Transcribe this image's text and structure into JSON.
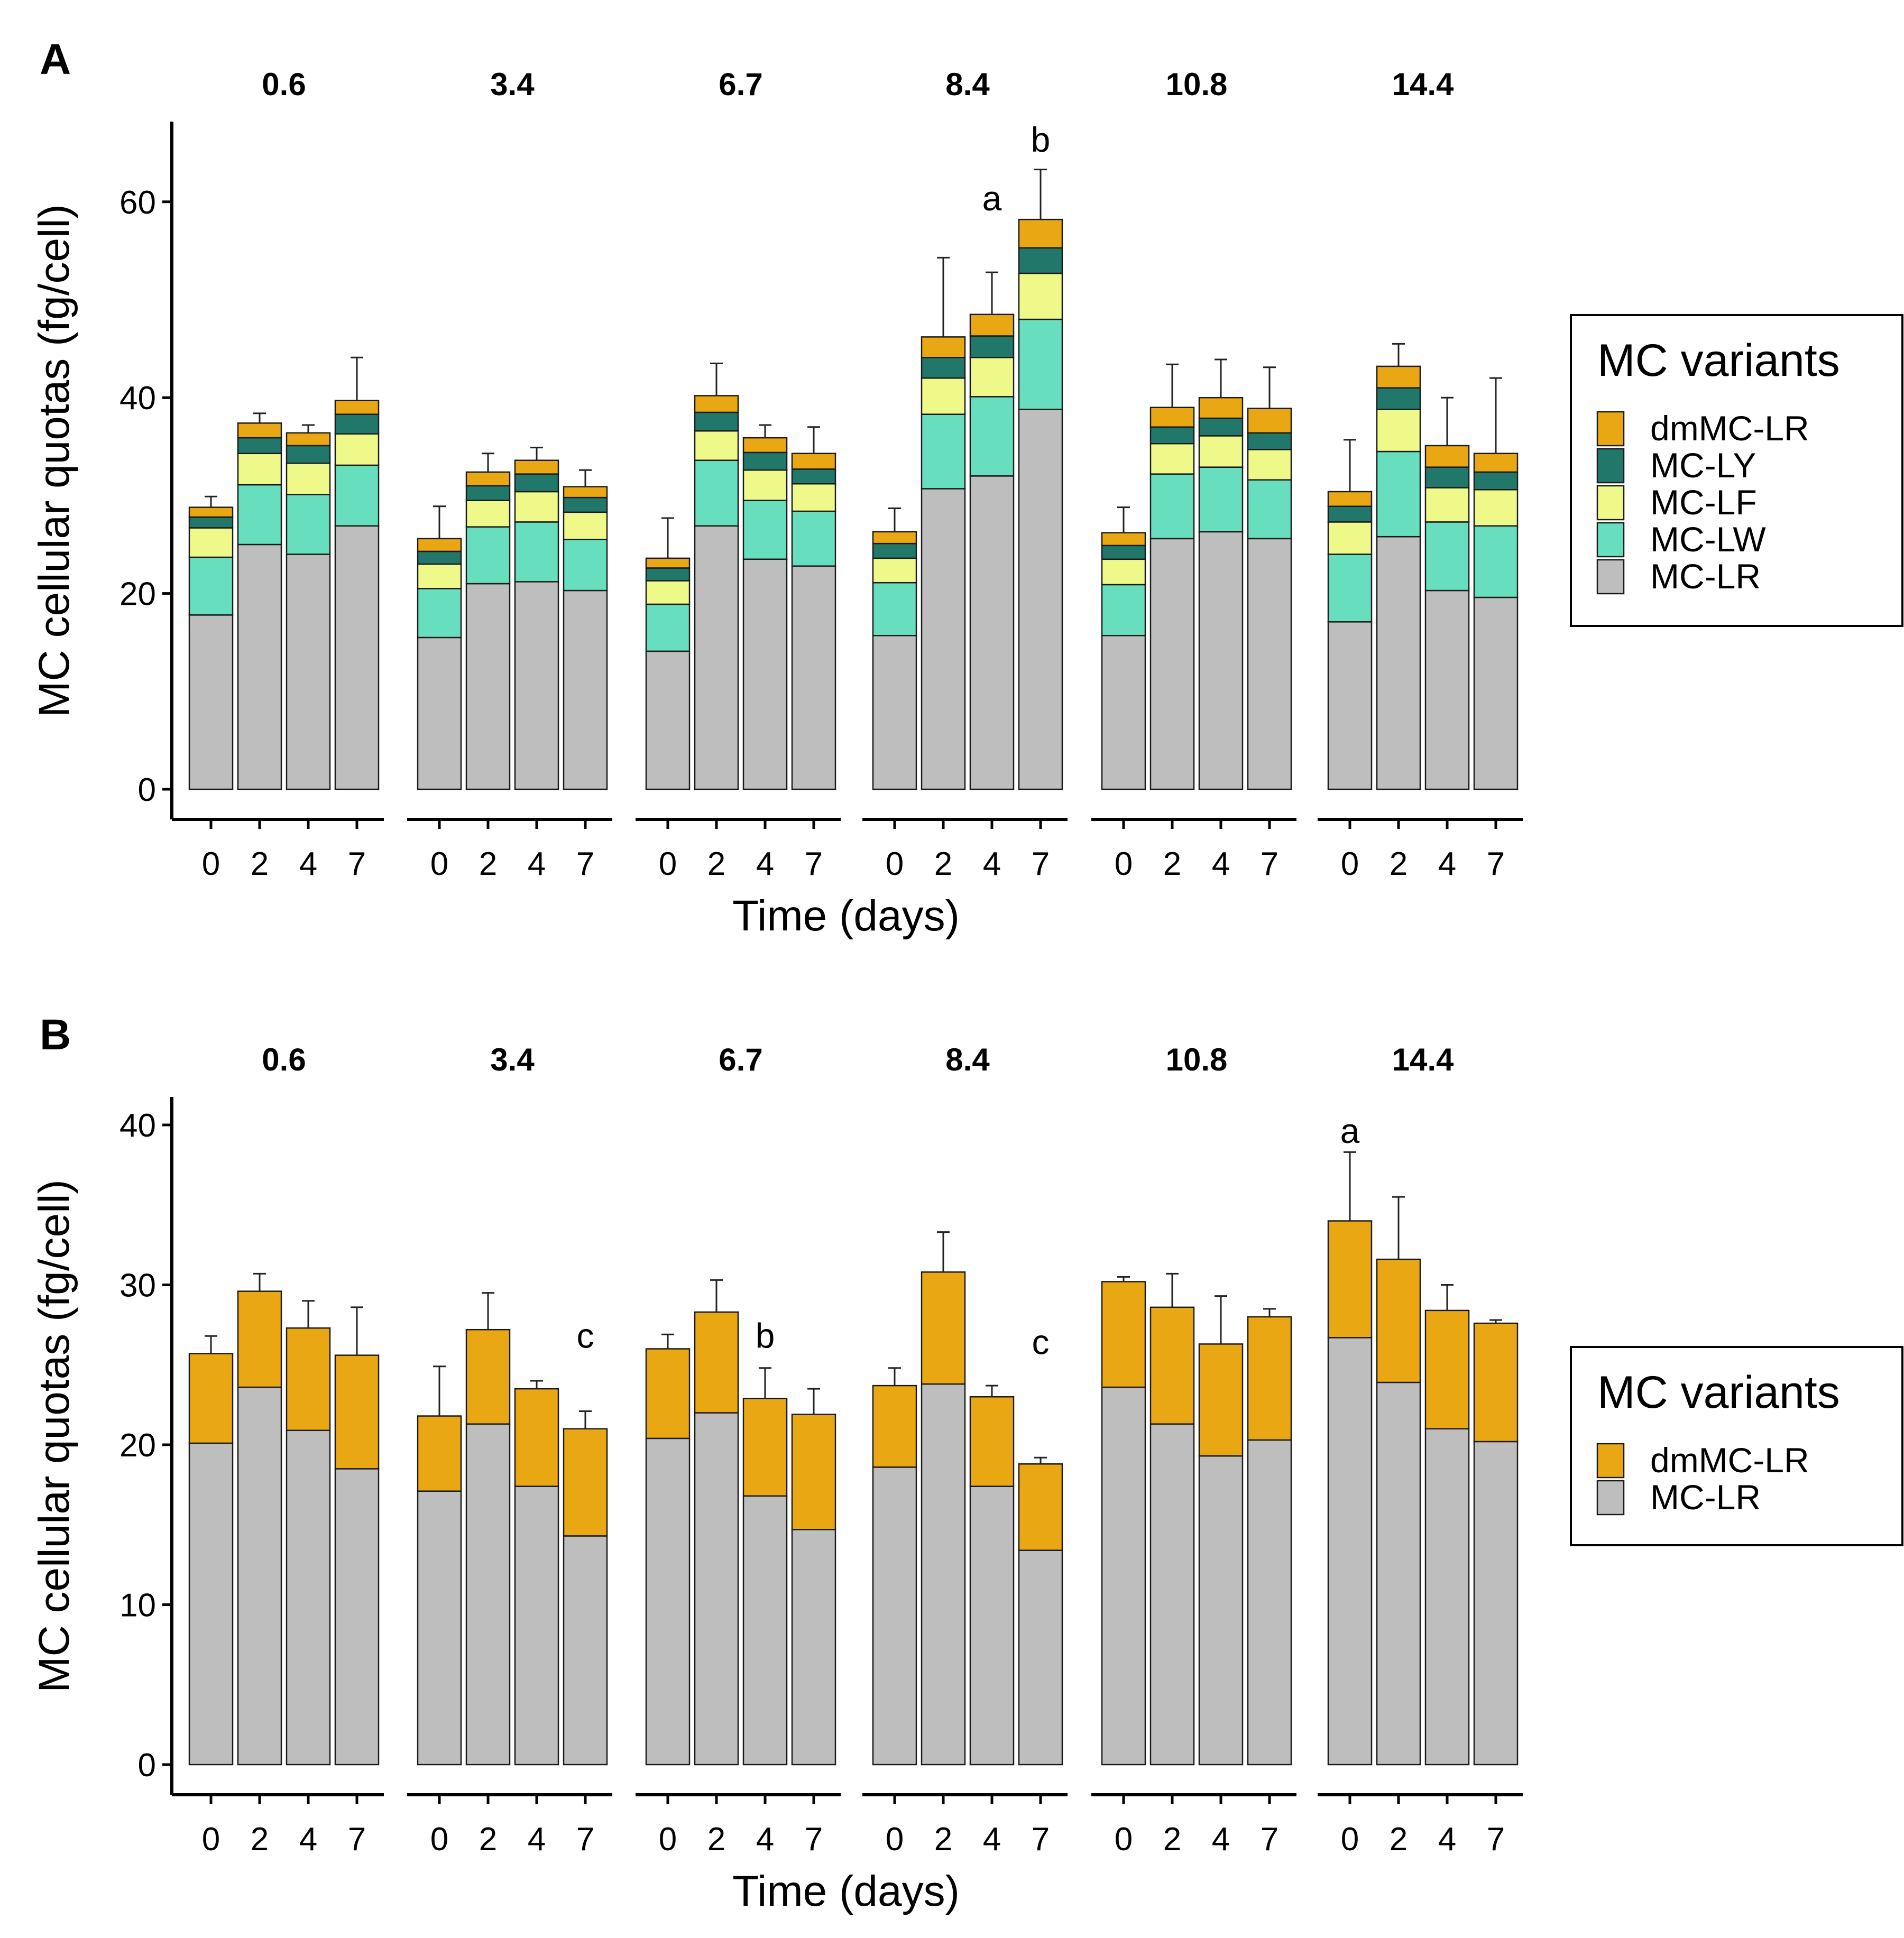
{
  "colors": {
    "dmMC-LR": "#E8A713",
    "MC-LY": "#21786A",
    "MC-LF": "#EFF98A",
    "MC-LW": "#67DFBF",
    "MC-LR": "#BEBEBE"
  },
  "chart_data": [
    {
      "panel": "A",
      "type": "bar",
      "stacked": true,
      "facets": [
        "0.6",
        "3.4",
        "6.7",
        "8.4",
        "10.8",
        "14.4"
      ],
      "categories": [
        "0",
        "2",
        "4",
        "7"
      ],
      "xlabel": "Time (days)",
      "ylabel": "MC cellular quotas (fg/cell)",
      "ylim": [
        0,
        68
      ],
      "yticks": [
        0,
        20,
        40,
        60
      ],
      "legend": {
        "title": "MC variants",
        "position": "right",
        "entries": [
          "dmMC-LR",
          "MC-LY",
          "MC-LF",
          "MC-LW",
          "MC-LR"
        ]
      },
      "stack_order": [
        "MC-LR",
        "MC-LW",
        "MC-LF",
        "MC-LY",
        "dmMC-LR"
      ],
      "series": [
        {
          "name": "MC-LR",
          "values": [
            [
              17.8,
              25.0,
              24.0,
              26.9
            ],
            [
              15.5,
              21.0,
              21.2,
              20.3
            ],
            [
              14.1,
              26.9,
              23.5,
              22.8
            ],
            [
              15.7,
              30.7,
              32.0,
              38.8
            ],
            [
              15.7,
              25.6,
              26.3,
              25.6
            ],
            [
              17.1,
              25.8,
              20.3,
              19.6
            ]
          ]
        },
        {
          "name": "MC-LW",
          "values": [
            [
              5.9,
              6.1,
              6.1,
              6.2
            ],
            [
              5.0,
              5.8,
              6.1,
              5.2
            ],
            [
              4.8,
              6.7,
              6.0,
              5.6
            ],
            [
              5.4,
              7.6,
              8.1,
              9.2
            ],
            [
              5.2,
              6.6,
              6.6,
              6.0
            ],
            [
              6.9,
              8.7,
              7.0,
              7.3
            ]
          ]
        },
        {
          "name": "MC-LF",
          "values": [
            [
              3.0,
              3.2,
              3.2,
              3.2
            ],
            [
              2.5,
              2.7,
              3.1,
              2.8
            ],
            [
              2.4,
              3.0,
              3.1,
              2.8
            ],
            [
              2.5,
              3.7,
              4.0,
              4.7
            ],
            [
              2.6,
              3.1,
              3.2,
              3.1
            ],
            [
              3.3,
              4.3,
              3.5,
              3.7
            ]
          ]
        },
        {
          "name": "MC-LY",
          "values": [
            [
              1.1,
              1.6,
              1.8,
              2.0
            ],
            [
              1.3,
              1.5,
              1.8,
              1.5
            ],
            [
              1.3,
              1.9,
              1.8,
              1.5
            ],
            [
              1.5,
              2.1,
              2.2,
              2.6
            ],
            [
              1.4,
              1.7,
              1.8,
              1.7
            ],
            [
              1.6,
              2.2,
              2.1,
              1.8
            ]
          ]
        },
        {
          "name": "dmMC-LR",
          "values": [
            [
              1.0,
              1.5,
              1.3,
              1.4
            ],
            [
              1.3,
              1.4,
              1.4,
              1.1
            ],
            [
              1.0,
              1.7,
              1.5,
              1.6
            ],
            [
              1.2,
              2.1,
              2.2,
              2.9
            ],
            [
              1.3,
              2.0,
              2.1,
              2.5
            ],
            [
              1.5,
              2.2,
              2.2,
              1.9
            ]
          ]
        }
      ],
      "error_bars_upper": [
        [
          29.9,
          38.4,
          37.2,
          44.1
        ],
        [
          28.9,
          34.3,
          34.9,
          32.6
        ],
        [
          27.7,
          43.5,
          37.2,
          37.0
        ],
        [
          28.7,
          54.3,
          52.8,
          63.3
        ],
        [
          28.8,
          43.4,
          43.9,
          43.1
        ],
        [
          35.7,
          45.5,
          40.0,
          42.0
        ]
      ],
      "annotations": [
        {
          "facet": "8.4",
          "category": "4",
          "y": 60.3,
          "text": "a"
        },
        {
          "facet": "8.4",
          "category": "7",
          "y": 66.3,
          "text": "b"
        }
      ]
    },
    {
      "panel": "B",
      "type": "bar",
      "stacked": true,
      "facets": [
        "0.6",
        "3.4",
        "6.7",
        "8.4",
        "10.8",
        "14.4"
      ],
      "categories": [
        "0",
        "2",
        "4",
        "7"
      ],
      "xlabel": "Time (days)",
      "ylabel": "MC cellular quotas (fg/cell)",
      "ylim": [
        0,
        42
      ],
      "yticks": [
        0,
        10,
        20,
        30,
        40
      ],
      "legend": {
        "title": "MC variants",
        "position": "right",
        "entries": [
          "dmMC-LR",
          "MC-LR"
        ]
      },
      "stack_order": [
        "MC-LR",
        "dmMC-LR"
      ],
      "series": [
        {
          "name": "MC-LR",
          "values": [
            [
              20.1,
              23.6,
              20.9,
              18.5
            ],
            [
              17.1,
              21.3,
              17.4,
              14.3
            ],
            [
              20.4,
              22.0,
              16.8,
              14.7
            ],
            [
              18.6,
              23.8,
              17.4,
              13.4
            ],
            [
              23.6,
              21.3,
              19.3,
              20.3
            ],
            [
              26.7,
              23.9,
              21.0,
              20.2
            ]
          ]
        },
        {
          "name": "dmMC-LR",
          "values": [
            [
              5.6,
              6.0,
              6.4,
              7.1
            ],
            [
              4.7,
              5.9,
              6.1,
              6.7
            ],
            [
              5.6,
              6.3,
              6.1,
              7.2
            ],
            [
              5.1,
              7.0,
              5.6,
              5.4
            ],
            [
              6.6,
              7.3,
              7.0,
              7.7
            ],
            [
              7.3,
              7.7,
              7.4,
              7.4
            ]
          ]
        }
      ],
      "error_bars_upper": [
        [
          26.8,
          30.7,
          29.0,
          28.6
        ],
        [
          24.9,
          29.5,
          24.0,
          22.1
        ],
        [
          26.9,
          30.3,
          24.8,
          23.5
        ],
        [
          24.8,
          33.3,
          23.7,
          19.2
        ],
        [
          30.5,
          30.7,
          29.3,
          28.5
        ],
        [
          38.3,
          35.5,
          30.0,
          27.8
        ]
      ],
      "annotations": [
        {
          "facet": "3.4",
          "category": "7",
          "y": 26.8,
          "text": "c"
        },
        {
          "facet": "6.7",
          "category": "4",
          "y": 26.8,
          "text": "b"
        },
        {
          "facet": "8.4",
          "category": "7",
          "y": 26.4,
          "text": "c"
        },
        {
          "facet": "14.4",
          "category": "0",
          "y": 39.6,
          "text": "a"
        }
      ]
    }
  ]
}
